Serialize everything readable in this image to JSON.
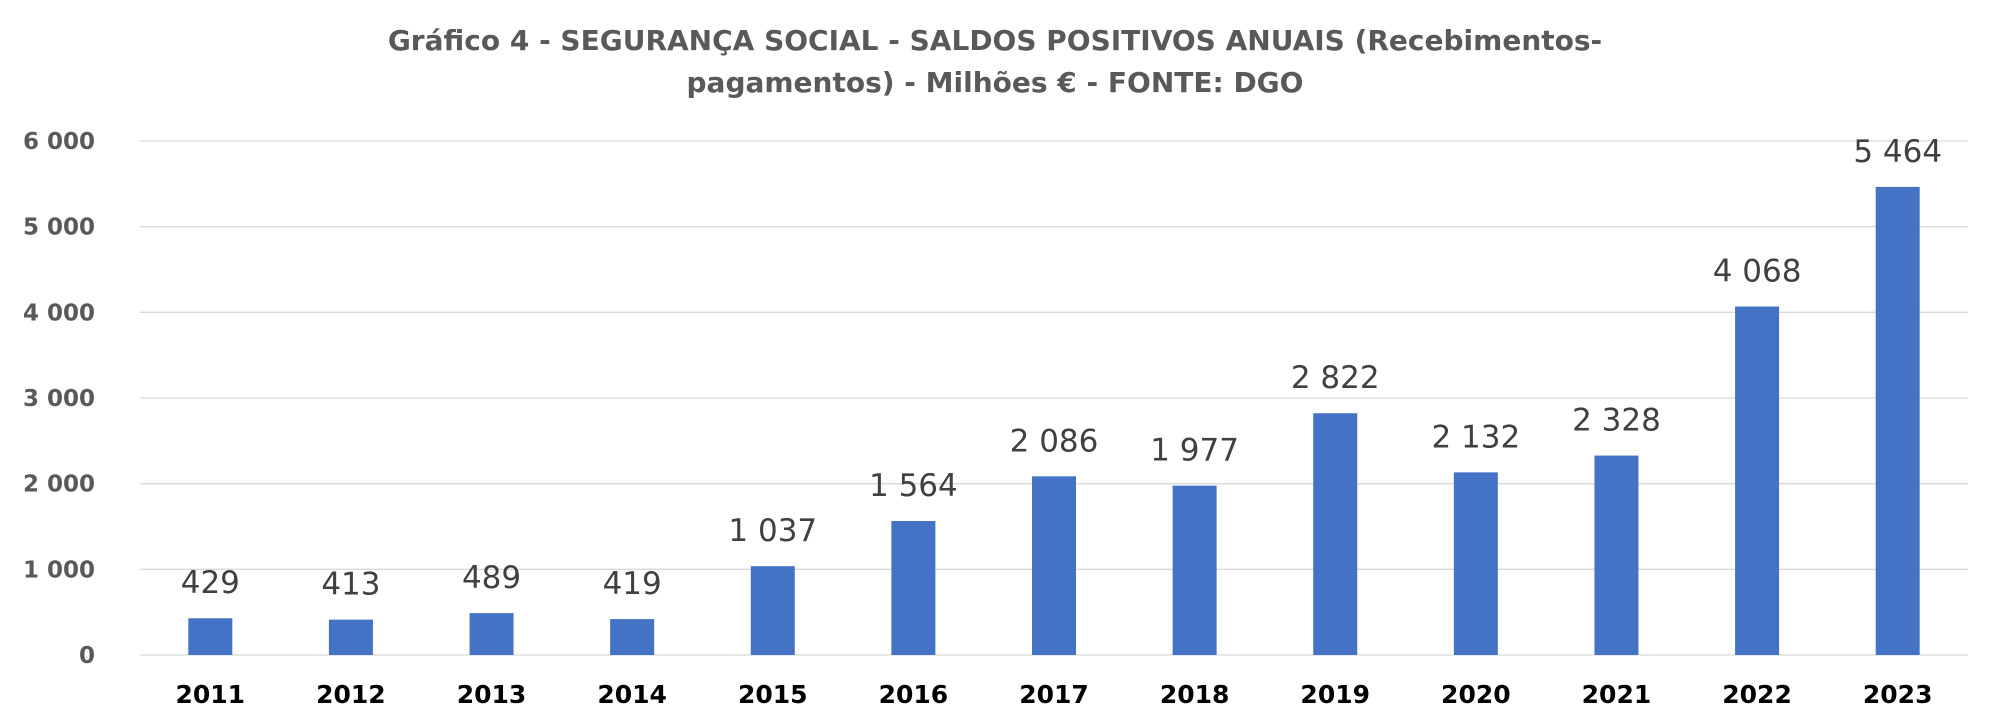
{
  "chart_data": {
    "type": "bar",
    "title": "Gráfico 4 -  SEGURANÇA SOCIAL - SALDOS POSITIVOS ANUAIS  (Recebimentos-pagamentos) - Milhões € - FONTE: DGO",
    "title_lines": [
      "Gráfico 4 -  SEGURANÇA SOCIAL - SALDOS POSITIVOS ANUAIS  (Recebimentos-",
      "pagamentos) - Milhões € - FONTE: DGO"
    ],
    "xlabel": "",
    "ylabel": "",
    "categories": [
      "2011",
      "2012",
      "2013",
      "2014",
      "2015",
      "2016",
      "2017",
      "2018",
      "2019",
      "2020",
      "2021",
      "2022",
      "2023"
    ],
    "values": [
      429,
      413,
      489,
      419,
      1037,
      1564,
      2086,
      1977,
      2822,
      2132,
      2328,
      4068,
      5464
    ],
    "data_labels": [
      "429",
      "413",
      "489",
      "419",
      "1 037",
      "1 564",
      "2 086",
      "1 977",
      "2 822",
      "2 132",
      "2 328",
      "4 068",
      "5 464"
    ],
    "ylim": [
      0,
      6000
    ],
    "y_ticks": [
      0,
      1000,
      2000,
      3000,
      4000,
      5000,
      6000
    ],
    "y_tick_labels": [
      "0",
      "1 000",
      "2 000",
      "3 000",
      "4 000",
      "5 000",
      "6 000"
    ],
    "grid": true,
    "legend": "none",
    "bar_color": "#4472C4",
    "grid_color": "#D9D9D9"
  }
}
